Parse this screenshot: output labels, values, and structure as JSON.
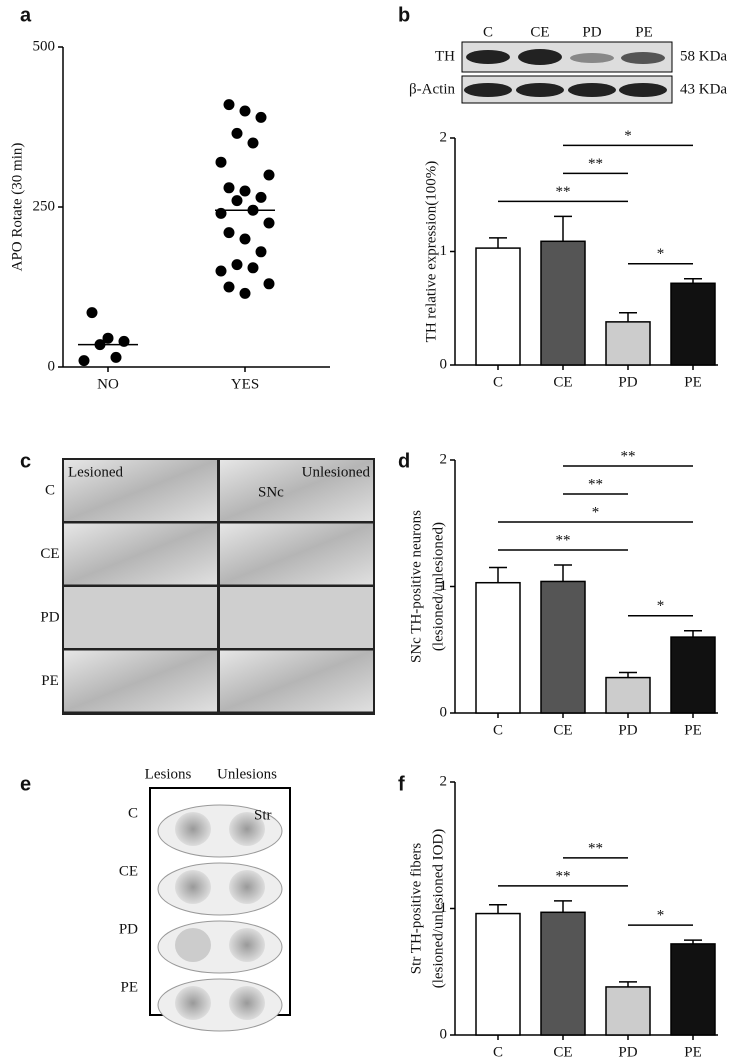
{
  "chart_data": [
    {
      "panel": "a",
      "type": "scatter",
      "y_label": "APO Rotate (30 min)",
      "categories": [
        "NO",
        "YES"
      ],
      "groups": [
        [
          85,
          45,
          40,
          35,
          15,
          10
        ],
        [
          410,
          400,
          390,
          365,
          350,
          320,
          300,
          280,
          275,
          265,
          260,
          245,
          240,
          225,
          210,
          200,
          180,
          160,
          155,
          150,
          130,
          125,
          115
        ]
      ],
      "means": [
        35,
        245
      ],
      "color": "#000000",
      "ylim": [
        0,
        500
      ],
      "yticks": [
        0,
        250,
        500
      ]
    },
    {
      "panel": "b",
      "type": "bar",
      "y_label": [
        "TH  relative expression(100%)"
      ],
      "categories": [
        "C",
        "CE",
        "PD",
        "PE"
      ],
      "values": [
        1.03,
        1.09,
        0.38,
        0.72
      ],
      "errors": [
        0.09,
        0.22,
        0.08,
        0.04
      ],
      "colors": [
        "#ffffff",
        "#555555",
        "#cccccc",
        "#111111"
      ],
      "ylim": [
        0,
        2
      ],
      "yticks": [
        0,
        1,
        2
      ],
      "brackets": [
        {
          "span": [
            2,
            3
          ],
          "label": "*"
        },
        {
          "span": [
            0,
            2
          ],
          "label": "**"
        },
        {
          "span": [
            1,
            2
          ],
          "label": "**"
        },
        {
          "span": [
            1,
            3
          ],
          "label": "*"
        }
      ]
    },
    {
      "panel": "d",
      "type": "bar",
      "y_label": [
        "SNc TH-positive  neurons",
        "(lesioned/unlesioned)"
      ],
      "categories": [
        "C",
        "CE",
        "PD",
        "PE"
      ],
      "values": [
        1.03,
        1.04,
        0.28,
        0.6
      ],
      "errors": [
        0.12,
        0.13,
        0.04,
        0.05
      ],
      "colors": [
        "#ffffff",
        "#555555",
        "#cccccc",
        "#111111"
      ],
      "ylim": [
        0,
        2
      ],
      "yticks": [
        0,
        1,
        2
      ],
      "brackets": [
        {
          "span": [
            2,
            3
          ],
          "label": "*"
        },
        {
          "span": [
            0,
            2
          ],
          "label": "**"
        },
        {
          "span": [
            0,
            3
          ],
          "label": "*"
        },
        {
          "span": [
            1,
            2
          ],
          "label": "**"
        },
        {
          "span": [
            1,
            3
          ],
          "label": "**"
        }
      ]
    },
    {
      "panel": "f",
      "type": "bar",
      "y_label": [
        "Str TH-positive fibers",
        "(lesioned/unlesioned IOD)"
      ],
      "categories": [
        "C",
        "CE",
        "PD",
        "PE"
      ],
      "values": [
        0.96,
        0.97,
        0.38,
        0.72
      ],
      "errors": [
        0.07,
        0.09,
        0.04,
        0.03
      ],
      "colors": [
        "#ffffff",
        "#555555",
        "#cccccc",
        "#111111"
      ],
      "ylim": [
        0,
        2
      ],
      "yticks": [
        0,
        1,
        2
      ],
      "brackets": [
        {
          "span": [
            2,
            3
          ],
          "label": "*"
        },
        {
          "span": [
            0,
            2
          ],
          "label": "**"
        },
        {
          "span": [
            1,
            2
          ],
          "label": "**"
        }
      ]
    }
  ],
  "blot": {
    "lanes": [
      "C",
      "CE",
      "PD",
      "PE"
    ],
    "proteins": [
      "TH",
      "β-Actin"
    ],
    "sizes": [
      "58 KDa",
      "43 KDa"
    ]
  },
  "images": [
    {
      "panel": "c",
      "columns": [
        "Lesioned",
        "Unlesioned"
      ],
      "rows": [
        "C",
        "CE",
        "PD",
        "PE"
      ],
      "annotation": "SNc"
    },
    {
      "panel": "e",
      "columns": [
        "Lesions",
        "Unlesions"
      ],
      "rows": [
        "C",
        "CE",
        "PD",
        "PE"
      ],
      "annotation": "Str"
    }
  ]
}
